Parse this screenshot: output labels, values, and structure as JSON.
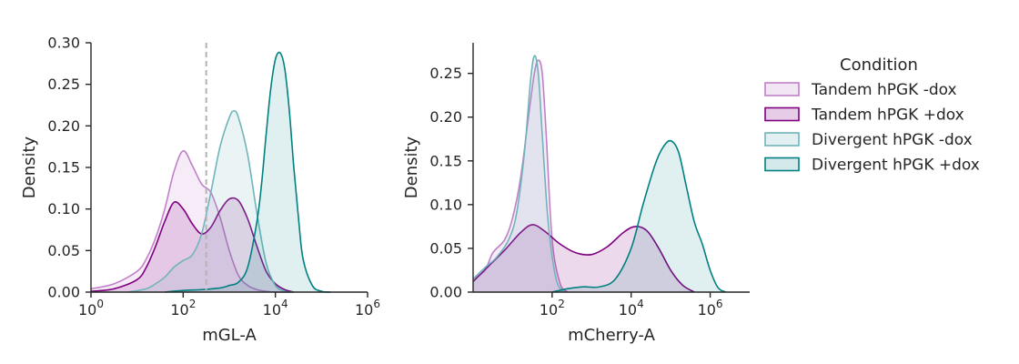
{
  "legend": {
    "title": "Condition",
    "entries": [
      {
        "label": "Tandem hPGK -dox",
        "color": "#C080C8",
        "fill_opacity": 0.15
      },
      {
        "label": "Tandem hPGK +dox",
        "color": "#800080",
        "fill_opacity": 0.15
      },
      {
        "label": "Divergent hPGK -dox",
        "color": "#70B4BA",
        "fill_opacity": 0.15
      },
      {
        "label": "Divergent hPGK +dox",
        "color": "#008080",
        "fill_opacity": 0.12
      }
    ]
  },
  "chart_data": [
    {
      "type": "area",
      "xlabel": "mGL-A",
      "ylabel": "Density",
      "xscale": "log10",
      "xlim_log10": [
        0,
        6
      ],
      "ylim": [
        0,
        0.3
      ],
      "x_ticks": [
        {
          "log10": 0,
          "label": "10^0"
        },
        {
          "log10": 2,
          "label": "10^2"
        },
        {
          "log10": 4,
          "label": "10^4"
        },
        {
          "log10": 6,
          "label": "10^6"
        }
      ],
      "y_ticks": [
        "0.00",
        "0.05",
        "0.10",
        "0.15",
        "0.20",
        "0.25",
        "0.30"
      ],
      "threshold_line_log10": 2.5,
      "series": [
        {
          "name": "Tandem hPGK -dox",
          "log10_x": [
            0,
            0.5,
            1.0,
            1.2,
            1.4,
            1.6,
            1.8,
            2.0,
            2.2,
            2.4,
            2.6,
            2.8,
            3.0,
            3.2,
            3.4,
            3.6,
            3.8,
            4.0,
            4.4
          ],
          "density": [
            0.004,
            0.01,
            0.025,
            0.04,
            0.065,
            0.1,
            0.145,
            0.17,
            0.152,
            0.13,
            0.12,
            0.09,
            0.05,
            0.02,
            0.008,
            0.003,
            0.001,
            0,
            0
          ]
        },
        {
          "name": "Tandem hPGK +dox",
          "log10_x": [
            0,
            0.5,
            1.0,
            1.2,
            1.4,
            1.6,
            1.8,
            2.0,
            2.2,
            2.4,
            2.6,
            2.8,
            3.0,
            3.2,
            3.4,
            3.6,
            3.8,
            4.0,
            4.2,
            4.4
          ],
          "density": [
            0.001,
            0.004,
            0.015,
            0.03,
            0.055,
            0.085,
            0.108,
            0.1,
            0.082,
            0.07,
            0.078,
            0.098,
            0.112,
            0.11,
            0.088,
            0.055,
            0.025,
            0.01,
            0.003,
            0
          ]
        },
        {
          "name": "Divergent hPGK -dox",
          "log10_x": [
            0.8,
            1.2,
            1.4,
            1.6,
            1.8,
            2.0,
            2.2,
            2.4,
            2.6,
            2.8,
            3.0,
            3.1,
            3.2,
            3.4,
            3.6,
            3.8,
            4.0,
            4.2,
            4.4
          ],
          "density": [
            0,
            0.004,
            0.01,
            0.018,
            0.03,
            0.038,
            0.045,
            0.07,
            0.12,
            0.175,
            0.21,
            0.218,
            0.21,
            0.165,
            0.095,
            0.035,
            0.008,
            0.001,
            0
          ]
        },
        {
          "name": "Divergent hPGK +dox",
          "log10_x": [
            1.6,
            2.0,
            2.4,
            2.8,
            3.0,
            3.2,
            3.4,
            3.6,
            3.7,
            3.8,
            3.9,
            4.0,
            4.1,
            4.2,
            4.3,
            4.4,
            4.5,
            4.6,
            4.8,
            5.0,
            5.2
          ],
          "density": [
            0,
            0.002,
            0.003,
            0.005,
            0.008,
            0.012,
            0.03,
            0.085,
            0.13,
            0.19,
            0.245,
            0.28,
            0.288,
            0.27,
            0.22,
            0.15,
            0.09,
            0.04,
            0.008,
            0.001,
            0
          ]
        }
      ]
    },
    {
      "type": "area",
      "xlabel": "mCherry-A",
      "ylabel": "Density",
      "xscale": "log10",
      "xlim_log10": [
        0,
        7
      ],
      "ylim": [
        0,
        0.285
      ],
      "x_ticks": [
        {
          "log10": 2,
          "label": "10^2"
        },
        {
          "log10": 4,
          "label": "10^4"
        },
        {
          "log10": 6,
          "label": "10^6"
        }
      ],
      "y_ticks": [
        "0.00",
        "0.05",
        "0.10",
        "0.15",
        "0.20",
        "0.25"
      ],
      "series": [
        {
          "name": "Tandem hPGK -dox",
          "log10_x": [
            0,
            0.3,
            0.5,
            0.8,
            1.0,
            1.2,
            1.4,
            1.55,
            1.65,
            1.75,
            1.85,
            2.0,
            2.2,
            2.4
          ],
          "density": [
            0.015,
            0.025,
            0.045,
            0.06,
            0.085,
            0.13,
            0.2,
            0.25,
            0.265,
            0.25,
            0.18,
            0.06,
            0.01,
            0
          ]
        },
        {
          "name": "Tandem hPGK +dox",
          "log10_x": [
            0,
            0.4,
            0.8,
            1.2,
            1.5,
            1.8,
            2.2,
            2.6,
            3.0,
            3.4,
            3.8,
            4.1,
            4.4,
            4.7,
            5.0,
            5.3,
            5.6
          ],
          "density": [
            0.012,
            0.03,
            0.048,
            0.068,
            0.077,
            0.07,
            0.055,
            0.045,
            0.043,
            0.052,
            0.068,
            0.075,
            0.07,
            0.05,
            0.025,
            0.008,
            0
          ]
        },
        {
          "name": "Divergent hPGK -dox",
          "log10_x": [
            0,
            0.3,
            0.6,
            0.9,
            1.1,
            1.3,
            1.45,
            1.55,
            1.65,
            1.75,
            1.9,
            2.1,
            2.3
          ],
          "density": [
            0.015,
            0.028,
            0.04,
            0.06,
            0.09,
            0.16,
            0.24,
            0.27,
            0.25,
            0.18,
            0.08,
            0.015,
            0
          ]
        },
        {
          "name": "Divergent hPGK +dox",
          "log10_x": [
            2.0,
            2.4,
            2.8,
            3.2,
            3.6,
            4.0,
            4.3,
            4.6,
            4.8,
            5.0,
            5.2,
            5.4,
            5.6,
            5.8,
            6.0,
            6.2,
            6.4
          ],
          "density": [
            0,
            0.004,
            0.006,
            0.006,
            0.015,
            0.05,
            0.1,
            0.145,
            0.165,
            0.173,
            0.16,
            0.12,
            0.08,
            0.055,
            0.025,
            0.005,
            0
          ]
        }
      ]
    }
  ]
}
